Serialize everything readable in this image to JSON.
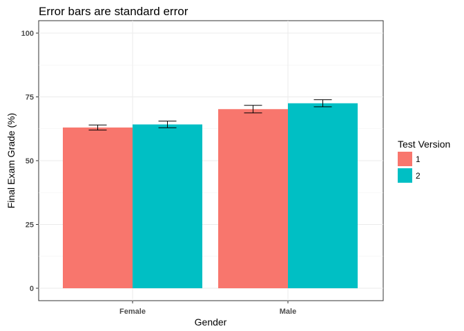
{
  "chart_data": {
    "type": "bar",
    "title": "Error bars are standard error",
    "xlabel": "Gender",
    "ylabel": "Final Exam Grade (%)",
    "categories": [
      "Female",
      "Male"
    ],
    "series": [
      {
        "name": "1",
        "values": [
          63.0,
          70.2
        ],
        "error": [
          1.0,
          1.5
        ]
      },
      {
        "name": "2",
        "values": [
          64.2,
          72.5
        ],
        "error": [
          1.3,
          1.4
        ]
      }
    ],
    "ylim": [
      0,
      100
    ],
    "yticks": [
      0,
      25,
      50,
      75,
      100
    ],
    "grid": true,
    "legend": {
      "title": "Test Version",
      "position": "right"
    },
    "colors": {
      "1": "#F8766D",
      "2": "#00BFC4"
    }
  }
}
